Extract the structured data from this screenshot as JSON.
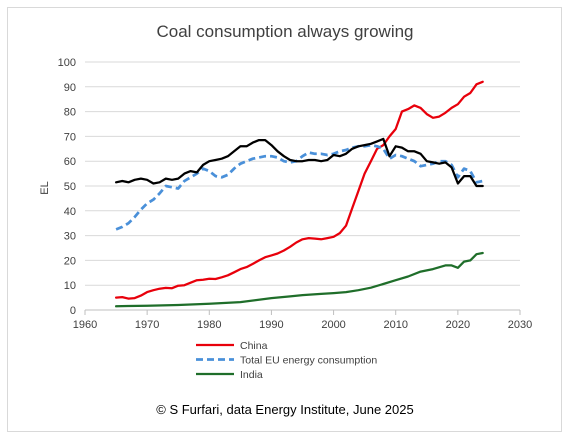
{
  "chart_data": {
    "type": "line",
    "title": "Coal consumption always growing",
    "xlabel": "",
    "ylabel": "EL",
    "xlim": [
      1960,
      2030
    ],
    "ylim": [
      0,
      100
    ],
    "x_ticks": [
      "1960",
      "1970",
      "1980",
      "1990",
      "2000",
      "2010",
      "2020",
      "2030"
    ],
    "y_ticks": [
      "0",
      "10",
      "20",
      "30",
      "40",
      "50",
      "60",
      "70",
      "80",
      "90",
      "100"
    ],
    "grid": "horizontal",
    "legend_position": "bottom-left",
    "series": [
      {
        "name": "China",
        "color": "#e8000b",
        "dash": "solid",
        "points": [
          [
            1965,
            5
          ],
          [
            1966,
            5.2
          ],
          [
            1967,
            4.6
          ],
          [
            1968,
            4.8
          ],
          [
            1969,
            5.8
          ],
          [
            1970,
            7.2
          ],
          [
            1971,
            8
          ],
          [
            1972,
            8.6
          ],
          [
            1973,
            8.9
          ],
          [
            1974,
            8.8
          ],
          [
            1975,
            9.8
          ],
          [
            1976,
            10
          ],
          [
            1977,
            11
          ],
          [
            1978,
            12
          ],
          [
            1979,
            12.2
          ],
          [
            1980,
            12.6
          ],
          [
            1981,
            12.5
          ],
          [
            1982,
            13.2
          ],
          [
            1983,
            14
          ],
          [
            1984,
            15.2
          ],
          [
            1985,
            16.5
          ],
          [
            1986,
            17.3
          ],
          [
            1987,
            18.6
          ],
          [
            1988,
            20
          ],
          [
            1989,
            21.3
          ],
          [
            1990,
            22
          ],
          [
            1991,
            22.8
          ],
          [
            1992,
            24
          ],
          [
            1993,
            25.5
          ],
          [
            1994,
            27.2
          ],
          [
            1995,
            28.5
          ],
          [
            1996,
            29
          ],
          [
            1997,
            28.8
          ],
          [
            1998,
            28.5
          ],
          [
            1999,
            29
          ],
          [
            2000,
            29.5
          ],
          [
            2001,
            31
          ],
          [
            2002,
            34
          ],
          [
            2003,
            41
          ],
          [
            2004,
            48
          ],
          [
            2005,
            55
          ],
          [
            2006,
            60
          ],
          [
            2007,
            65
          ],
          [
            2008,
            66.5
          ],
          [
            2009,
            70
          ],
          [
            2010,
            73
          ],
          [
            2011,
            80
          ],
          [
            2012,
            81
          ],
          [
            2013,
            82.5
          ],
          [
            2014,
            81.5
          ],
          [
            2015,
            79
          ],
          [
            2016,
            77.5
          ],
          [
            2017,
            78
          ],
          [
            2018,
            79.5
          ],
          [
            2019,
            81.5
          ],
          [
            2020,
            83
          ],
          [
            2021,
            86
          ],
          [
            2022,
            87.5
          ],
          [
            2023,
            91
          ],
          [
            2024,
            92
          ]
        ]
      },
      {
        "name": "Total EU energy consumption",
        "color": "#4a90d9",
        "dash": "dashed",
        "points": [
          [
            1965,
            32.5
          ],
          [
            1966,
            33.5
          ],
          [
            1967,
            35
          ],
          [
            1968,
            37.5
          ],
          [
            1969,
            40.5
          ],
          [
            1970,
            43
          ],
          [
            1971,
            44.5
          ],
          [
            1972,
            47
          ],
          [
            1973,
            50
          ],
          [
            1974,
            49.5
          ],
          [
            1975,
            49
          ],
          [
            1976,
            52
          ],
          [
            1977,
            53.5
          ],
          [
            1978,
            55
          ],
          [
            1979,
            57
          ],
          [
            1980,
            56
          ],
          [
            1981,
            54
          ],
          [
            1982,
            53.5
          ],
          [
            1983,
            54.5
          ],
          [
            1984,
            57
          ],
          [
            1985,
            59
          ],
          [
            1986,
            60
          ],
          [
            1987,
            61
          ],
          [
            1988,
            61.5
          ],
          [
            1989,
            62
          ],
          [
            1990,
            62
          ],
          [
            1991,
            61.5
          ],
          [
            1992,
            60
          ],
          [
            1993,
            59.5
          ],
          [
            1994,
            60
          ],
          [
            1995,
            62
          ],
          [
            1996,
            63.5
          ],
          [
            1997,
            63
          ],
          [
            1998,
            63
          ],
          [
            1999,
            62.5
          ],
          [
            2000,
            63
          ],
          [
            2001,
            64
          ],
          [
            2002,
            64.5
          ],
          [
            2003,
            65.5
          ],
          [
            2004,
            66
          ],
          [
            2005,
            66
          ],
          [
            2006,
            66.5
          ],
          [
            2007,
            66
          ],
          [
            2008,
            65
          ],
          [
            2009,
            61
          ],
          [
            2010,
            62.5
          ],
          [
            2011,
            62
          ],
          [
            2012,
            61
          ],
          [
            2013,
            60
          ],
          [
            2014,
            58
          ],
          [
            2015,
            58.5
          ],
          [
            2016,
            59
          ],
          [
            2017,
            60
          ],
          [
            2018,
            60
          ],
          [
            2019,
            58.5
          ],
          [
            2020,
            53.5
          ],
          [
            2021,
            57
          ],
          [
            2022,
            56
          ],
          [
            2023,
            51.5
          ],
          [
            2024,
            52
          ]
        ]
      },
      {
        "name": "",
        "color": "#000000",
        "dash": "solid",
        "points": [
          [
            1965,
            51.5
          ],
          [
            1966,
            52
          ],
          [
            1967,
            51.5
          ],
          [
            1968,
            52.5
          ],
          [
            1969,
            53
          ],
          [
            1970,
            52.5
          ],
          [
            1971,
            51
          ],
          [
            1972,
            51.5
          ],
          [
            1973,
            53
          ],
          [
            1974,
            52.5
          ],
          [
            1975,
            53
          ],
          [
            1976,
            55
          ],
          [
            1977,
            56
          ],
          [
            1978,
            55.5
          ],
          [
            1979,
            58.5
          ],
          [
            1980,
            60
          ],
          [
            1981,
            60.5
          ],
          [
            1982,
            61
          ],
          [
            1983,
            62
          ],
          [
            1984,
            64
          ],
          [
            1985,
            66
          ],
          [
            1986,
            66
          ],
          [
            1987,
            67.5
          ],
          [
            1988,
            68.5
          ],
          [
            1989,
            68.5
          ],
          [
            1990,
            66.5
          ],
          [
            1991,
            64
          ],
          [
            1992,
            62
          ],
          [
            1993,
            60.5
          ],
          [
            1994,
            60
          ],
          [
            1995,
            60
          ],
          [
            1996,
            60.5
          ],
          [
            1997,
            60.5
          ],
          [
            1998,
            60
          ],
          [
            1999,
            60.5
          ],
          [
            2000,
            62.5
          ],
          [
            2001,
            62
          ],
          [
            2002,
            63
          ],
          [
            2003,
            65
          ],
          [
            2004,
            66
          ],
          [
            2005,
            66.5
          ],
          [
            2006,
            67
          ],
          [
            2007,
            68
          ],
          [
            2008,
            69
          ],
          [
            2009,
            62
          ],
          [
            2010,
            66
          ],
          [
            2011,
            65.5
          ],
          [
            2012,
            64
          ],
          [
            2013,
            64
          ],
          [
            2014,
            63
          ],
          [
            2015,
            60
          ],
          [
            2016,
            59.5
          ],
          [
            2017,
            59
          ],
          [
            2018,
            59.5
          ],
          [
            2019,
            57.5
          ],
          [
            2020,
            51
          ],
          [
            2021,
            54
          ],
          [
            2022,
            54
          ],
          [
            2023,
            50
          ],
          [
            2024,
            50
          ]
        ]
      },
      {
        "name": "India",
        "color": "#1f6e2a",
        "dash": "solid",
        "points": [
          [
            1965,
            1.5
          ],
          [
            1967,
            1.6
          ],
          [
            1970,
            1.7
          ],
          [
            1975,
            2
          ],
          [
            1980,
            2.5
          ],
          [
            1985,
            3.2
          ],
          [
            1990,
            4.8
          ],
          [
            1993,
            5.5
          ],
          [
            1995,
            6
          ],
          [
            1998,
            6.5
          ],
          [
            2000,
            6.8
          ],
          [
            2002,
            7.2
          ],
          [
            2004,
            8
          ],
          [
            2006,
            9
          ],
          [
            2008,
            10.5
          ],
          [
            2010,
            12
          ],
          [
            2012,
            13.5
          ],
          [
            2014,
            15.5
          ],
          [
            2016,
            16.5
          ],
          [
            2018,
            18
          ],
          [
            2019,
            18
          ],
          [
            2020,
            17
          ],
          [
            2021,
            19.5
          ],
          [
            2022,
            20
          ],
          [
            2023,
            22.5
          ],
          [
            2024,
            23
          ]
        ]
      }
    ]
  },
  "credit": "© S Furfari, data Energy Institute, June 2025"
}
